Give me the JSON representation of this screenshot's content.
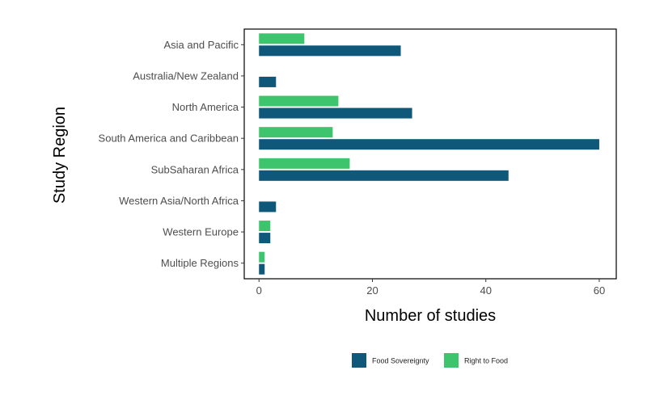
{
  "chart_data": {
    "type": "bar",
    "orientation": "horizontal",
    "xlabel": "Number of studies",
    "ylabel": "Study Region",
    "categories": [
      "Asia and Pacific",
      "Australia/New Zealand",
      "North America",
      "South America and Caribbean",
      "SubSaharan Africa",
      "Western Asia/North Africa",
      "Western Europe",
      "Multiple Regions"
    ],
    "series": [
      {
        "name": "Food Sovereignty",
        "color": "#10587a",
        "values": [
          25,
          3,
          27,
          60,
          44,
          3,
          2,
          1
        ]
      },
      {
        "name": "Right to Food",
        "color": "#3ec46d",
        "values": [
          8,
          0,
          14,
          13,
          16,
          0,
          2,
          1
        ]
      }
    ],
    "xlim": [
      -2.6,
      63
    ],
    "xticks": [
      0,
      20,
      40,
      60
    ],
    "grid": false,
    "legend_position": "bottom"
  }
}
